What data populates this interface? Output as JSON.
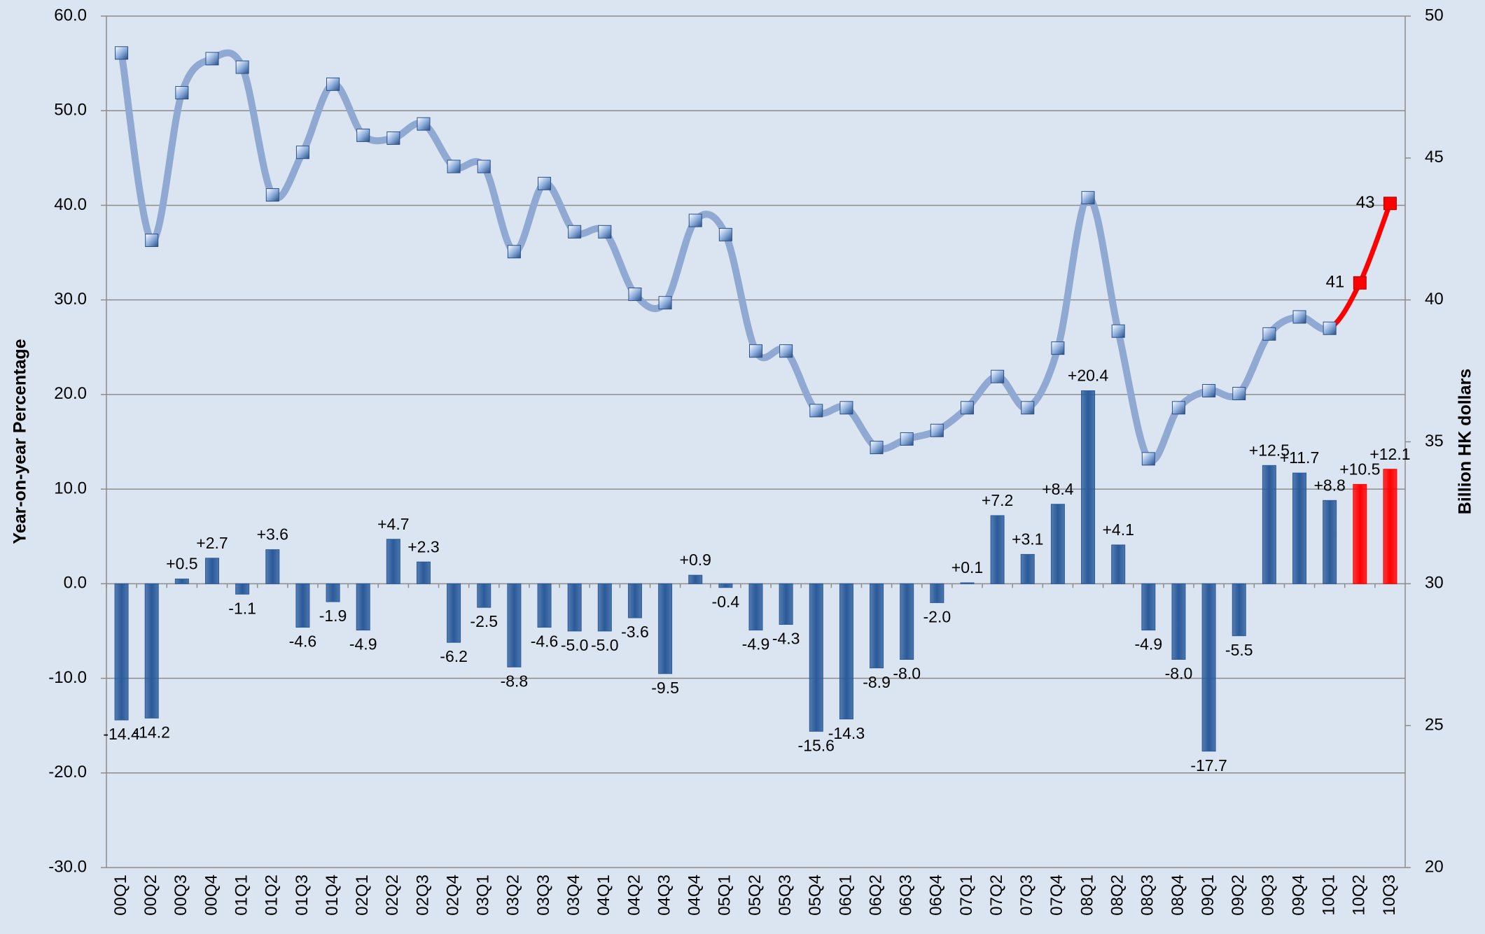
{
  "chart_data": {
    "type": "bar",
    "categories": [
      "00Q1",
      "00Q2",
      "00Q3",
      "00Q4",
      "01Q1",
      "01Q2",
      "01Q3",
      "01Q4",
      "02Q1",
      "02Q2",
      "02Q3",
      "02Q4",
      "03Q1",
      "03Q2",
      "03Q3",
      "03Q4",
      "04Q1",
      "04Q2",
      "04Q3",
      "04Q4",
      "05Q1",
      "05Q2",
      "05Q3",
      "05Q4",
      "06Q1",
      "06Q2",
      "06Q3",
      "06Q4",
      "07Q1",
      "07Q2",
      "07Q3",
      "07Q4",
      "08Q1",
      "08Q2",
      "08Q3",
      "08Q4",
      "09Q1",
      "09Q2",
      "09Q3",
      "09Q4",
      "10Q1",
      "10Q2",
      "10Q3"
    ],
    "series": [
      {
        "type": "bar",
        "values": [
          -14.4,
          -14.2,
          0.5,
          2.7,
          -1.1,
          3.6,
          -4.6,
          -1.9,
          -4.9,
          4.7,
          2.3,
          -6.2,
          -2.5,
          -8.8,
          -4.6,
          -5.0,
          -5.0,
          -3.6,
          -9.5,
          0.9,
          -0.4,
          -4.9,
          -4.3,
          -15.6,
          -14.3,
          -8.9,
          -8.0,
          -2.0,
          0.1,
          7.2,
          3.1,
          8.4,
          20.4,
          4.1,
          -4.9,
          -8.0,
          -17.7,
          -5.5,
          12.5,
          11.7,
          8.8,
          10.5,
          12.1
        ],
        "value_labels": [
          "-14.4",
          "-14.2",
          "+0.5",
          "+2.7",
          "-1.1",
          "+3.6",
          "-4.6",
          "-1.9",
          "-4.9",
          "+4.7",
          "+2.3",
          "-6.2",
          "-2.5",
          "-8.8",
          "-4.6",
          "-5.0",
          "-5.0",
          "-3.6",
          "-9.5",
          "+0.9",
          "-0.4",
          "-4.9",
          "-4.3",
          "-15.6",
          "-14.3",
          "-8.9",
          "-8.0",
          "-2.0",
          "+0.1",
          "+7.2",
          "+3.1",
          "+8.4",
          "+20.4",
          "+4.1",
          "-4.9",
          "-8.0",
          "-17.7",
          "-5.5",
          "+12.5",
          "+11.7",
          "+8.8",
          "+10.5",
          "+12.1"
        ],
        "colors": [
          "#2a5a9a",
          "#2a5a9a",
          "#2a5a9a",
          "#2a5a9a",
          "#2a5a9a",
          "#2a5a9a",
          "#2a5a9a",
          "#2a5a9a",
          "#2a5a9a",
          "#2a5a9a",
          "#2a5a9a",
          "#2a5a9a",
          "#2a5a9a",
          "#2a5a9a",
          "#2a5a9a",
          "#2a5a9a",
          "#2a5a9a",
          "#2a5a9a",
          "#2a5a9a",
          "#2a5a9a",
          "#2a5a9a",
          "#2a5a9a",
          "#2a5a9a",
          "#2a5a9a",
          "#2a5a9a",
          "#2a5a9a",
          "#2a5a9a",
          "#2a5a9a",
          "#2a5a9a",
          "#2a5a9a",
          "#2a5a9a",
          "#2a5a9a",
          "#2a5a9a",
          "#2a5a9a",
          "#2a5a9a",
          "#2a5a9a",
          "#2a5a9a",
          "#2a5a9a",
          "#2a5a9a",
          "#2a5a9a",
          "#2a5a9a",
          "#ff0000",
          "#ff0000"
        ]
      },
      {
        "type": "line",
        "axis": "y2",
        "values": [
          48.7,
          42.1,
          47.3,
          48.5,
          48.2,
          43.7,
          45.2,
          47.6,
          45.8,
          45.7,
          46.2,
          44.7,
          44.7,
          41.7,
          44.1,
          42.4,
          42.4,
          40.2,
          39.9,
          42.8,
          42.3,
          38.2,
          38.2,
          36.1,
          36.2,
          34.8,
          35.1,
          35.4,
          36.2,
          37.3,
          36.2,
          38.3,
          43.6,
          38.9,
          34.4,
          36.2,
          36.8,
          36.7,
          38.8,
          39.4,
          39.0,
          40.6,
          43.4
        ],
        "value_labels": [
          null,
          null,
          null,
          null,
          null,
          null,
          null,
          null,
          null,
          null,
          null,
          null,
          null,
          null,
          null,
          null,
          null,
          null,
          null,
          null,
          null,
          null,
          null,
          null,
          null,
          null,
          null,
          null,
          null,
          null,
          null,
          null,
          null,
          null,
          null,
          null,
          null,
          null,
          null,
          null,
          null,
          "41",
          "43"
        ],
        "colors": [
          "#8fa9d3",
          "#8fa9d3",
          "#8fa9d3",
          "#8fa9d3",
          "#8fa9d3",
          "#8fa9d3",
          "#8fa9d3",
          "#8fa9d3",
          "#8fa9d3",
          "#8fa9d3",
          "#8fa9d3",
          "#8fa9d3",
          "#8fa9d3",
          "#8fa9d3",
          "#8fa9d3",
          "#8fa9d3",
          "#8fa9d3",
          "#8fa9d3",
          "#8fa9d3",
          "#8fa9d3",
          "#8fa9d3",
          "#8fa9d3",
          "#8fa9d3",
          "#8fa9d3",
          "#8fa9d3",
          "#8fa9d3",
          "#8fa9d3",
          "#8fa9d3",
          "#8fa9d3",
          "#8fa9d3",
          "#8fa9d3",
          "#8fa9d3",
          "#8fa9d3",
          "#8fa9d3",
          "#8fa9d3",
          "#8fa9d3",
          "#8fa9d3",
          "#8fa9d3",
          "#8fa9d3",
          "#8fa9d3",
          "#8fa9d3",
          "#ff0000",
          "#ff0000"
        ]
      }
    ],
    "ylabel": "Year-on-year Percentage",
    "y2label": "Billion HK dollars",
    "ylim": [
      -30,
      60
    ],
    "yticks": [
      {
        "value": -30,
        "label": "-30.0"
      },
      {
        "value": -20,
        "label": "-20.0"
      },
      {
        "value": -10,
        "label": "-10.0"
      },
      {
        "value": 0,
        "label": "0.0"
      },
      {
        "value": 10,
        "label": "10.0"
      },
      {
        "value": 20,
        "label": "20.0"
      },
      {
        "value": 30,
        "label": "30.0"
      },
      {
        "value": 40,
        "label": "40.0"
      },
      {
        "value": 50,
        "label": "50.0"
      },
      {
        "value": 60,
        "label": "60.0"
      }
    ],
    "y2lim": [
      20,
      50
    ],
    "y2ticks": [
      20,
      25,
      30,
      35,
      40,
      45,
      50
    ],
    "grid": true
  }
}
